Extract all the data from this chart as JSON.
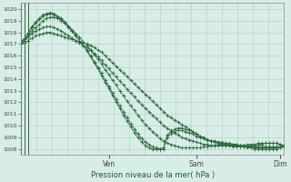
{
  "xlabel": "Pression niveau de la mer( hPa )",
  "ylim": [
    1007.5,
    1020.5
  ],
  "yticks": [
    1008,
    1009,
    1010,
    1011,
    1012,
    1013,
    1014,
    1015,
    1016,
    1017,
    1018,
    1019,
    1020
  ],
  "x_day_labels": [
    [
      "Ven",
      24
    ],
    [
      "Sam",
      48
    ],
    [
      "Dim",
      71
    ]
  ],
  "total_points": 73,
  "background_color": "#d9ede8",
  "grid_color": "#b0ccbb",
  "line_color": "#2a6b3a",
  "series": [
    [
      1017.0,
      1017.1,
      1017.3,
      1017.5,
      1017.7,
      1017.8,
      1017.9,
      1018.0,
      1018.0,
      1017.9,
      1017.8,
      1017.7,
      1017.6,
      1017.5,
      1017.4,
      1017.3,
      1017.2,
      1017.1,
      1017.0,
      1016.9,
      1016.7,
      1016.5,
      1016.3,
      1016.0,
      1015.7,
      1015.4,
      1015.1,
      1014.8,
      1014.5,
      1014.2,
      1013.9,
      1013.6,
      1013.3,
      1013.0,
      1012.7,
      1012.4,
      1012.1,
      1011.8,
      1011.5,
      1011.2,
      1010.9,
      1010.7,
      1010.5,
      1010.3,
      1010.1,
      1009.9,
      1009.7,
      1009.5,
      1009.3,
      1009.1,
      1008.9,
      1008.8,
      1008.7,
      1008.6,
      1008.5,
      1008.4,
      1008.3,
      1008.3,
      1008.2,
      1008.2,
      1008.2,
      1008.2,
      1008.2,
      1008.3,
      1008.3,
      1008.4,
      1008.4,
      1008.5,
      1008.5,
      1008.5,
      1008.5,
      1008.4,
      1008.3
    ],
    [
      1017.2,
      1017.4,
      1017.6,
      1017.9,
      1018.1,
      1018.3,
      1018.4,
      1018.5,
      1018.5,
      1018.4,
      1018.3,
      1018.1,
      1017.9,
      1017.7,
      1017.5,
      1017.3,
      1017.1,
      1016.9,
      1016.7,
      1016.5,
      1016.2,
      1015.9,
      1015.6,
      1015.2,
      1014.9,
      1014.5,
      1014.2,
      1013.8,
      1013.5,
      1013.1,
      1012.8,
      1012.5,
      1012.1,
      1011.8,
      1011.5,
      1011.2,
      1010.9,
      1010.6,
      1010.3,
      1010.0,
      1009.8,
      1009.6,
      1009.4,
      1009.2,
      1009.0,
      1008.9,
      1008.8,
      1008.7,
      1008.6,
      1008.5,
      1008.4,
      1008.4,
      1008.3,
      1008.3,
      1008.3,
      1008.3,
      1008.3,
      1008.3,
      1008.3,
      1008.3,
      1008.3,
      1008.3,
      1008.4,
      1008.4,
      1008.4,
      1008.5,
      1008.5,
      1008.5,
      1008.5,
      1008.5,
      1008.5,
      1008.4,
      1008.3
    ],
    [
      1017.0,
      1017.3,
      1017.7,
      1018.1,
      1018.4,
      1018.7,
      1019.0,
      1019.2,
      1019.3,
      1019.3,
      1019.2,
      1019.0,
      1018.8,
      1018.5,
      1018.2,
      1017.9,
      1017.6,
      1017.2,
      1016.9,
      1016.5,
      1016.1,
      1015.7,
      1015.3,
      1014.8,
      1014.4,
      1013.9,
      1013.5,
      1013.0,
      1012.6,
      1012.1,
      1011.7,
      1011.3,
      1010.9,
      1010.5,
      1010.1,
      1009.8,
      1009.5,
      1009.2,
      1008.9,
      1008.7,
      1008.5,
      1008.4,
      1008.3,
      1008.2,
      1008.1,
      1008.1,
      1008.1,
      1008.1,
      1008.1,
      1008.1,
      1008.2,
      1008.2,
      1008.3,
      1008.3,
      1008.4,
      1008.4,
      1008.4,
      1008.4,
      1008.4,
      1008.4,
      1008.3,
      1008.3,
      1008.2,
      1008.2,
      1008.2,
      1008.2,
      1008.2,
      1008.2,
      1008.2,
      1008.2,
      1008.2,
      1008.2,
      1008.2
    ],
    [
      1017.1,
      1017.4,
      1017.9,
      1018.4,
      1018.8,
      1019.1,
      1019.4,
      1019.5,
      1019.6,
      1019.5,
      1019.3,
      1019.1,
      1018.8,
      1018.4,
      1018.1,
      1017.7,
      1017.3,
      1016.9,
      1016.5,
      1016.0,
      1015.5,
      1015.0,
      1014.5,
      1013.9,
      1013.4,
      1012.8,
      1012.3,
      1011.7,
      1011.2,
      1010.7,
      1010.2,
      1009.7,
      1009.3,
      1008.9,
      1008.6,
      1008.4,
      1008.2,
      1008.1,
      1008.0,
      1008.0,
      1009.0,
      1009.3,
      1009.5,
      1009.6,
      1009.6,
      1009.5,
      1009.4,
      1009.3,
      1009.1,
      1009.0,
      1008.9,
      1008.8,
      1008.7,
      1008.7,
      1008.6,
      1008.6,
      1008.5,
      1008.5,
      1008.4,
      1008.4,
      1008.3,
      1008.3,
      1008.2,
      1008.2,
      1008.1,
      1008.1,
      1008.1,
      1008.1,
      1008.1,
      1008.1,
      1008.1,
      1008.2,
      1008.3
    ],
    [
      1017.2,
      1017.5,
      1018.0,
      1018.5,
      1018.9,
      1019.2,
      1019.5,
      1019.6,
      1019.7,
      1019.6,
      1019.4,
      1019.2,
      1018.9,
      1018.5,
      1018.1,
      1017.7,
      1017.3,
      1016.9,
      1016.4,
      1015.9,
      1015.4,
      1014.9,
      1014.3,
      1013.7,
      1013.2,
      1012.6,
      1012.0,
      1011.5,
      1010.9,
      1010.4,
      1009.9,
      1009.4,
      1009.0,
      1008.6,
      1008.3,
      1008.1,
      1008.0,
      1008.0,
      1008.0,
      1008.1,
      1009.2,
      1009.5,
      1009.7,
      1009.8,
      1009.8,
      1009.7,
      1009.6,
      1009.5,
      1009.3,
      1009.1,
      1009.0,
      1008.8,
      1008.7,
      1008.6,
      1008.5,
      1008.5,
      1008.4,
      1008.4,
      1008.3,
      1008.3,
      1008.2,
      1008.2,
      1008.1,
      1008.1,
      1008.0,
      1008.0,
      1008.0,
      1008.0,
      1008.0,
      1008.0,
      1008.0,
      1008.1,
      1008.2
    ]
  ]
}
